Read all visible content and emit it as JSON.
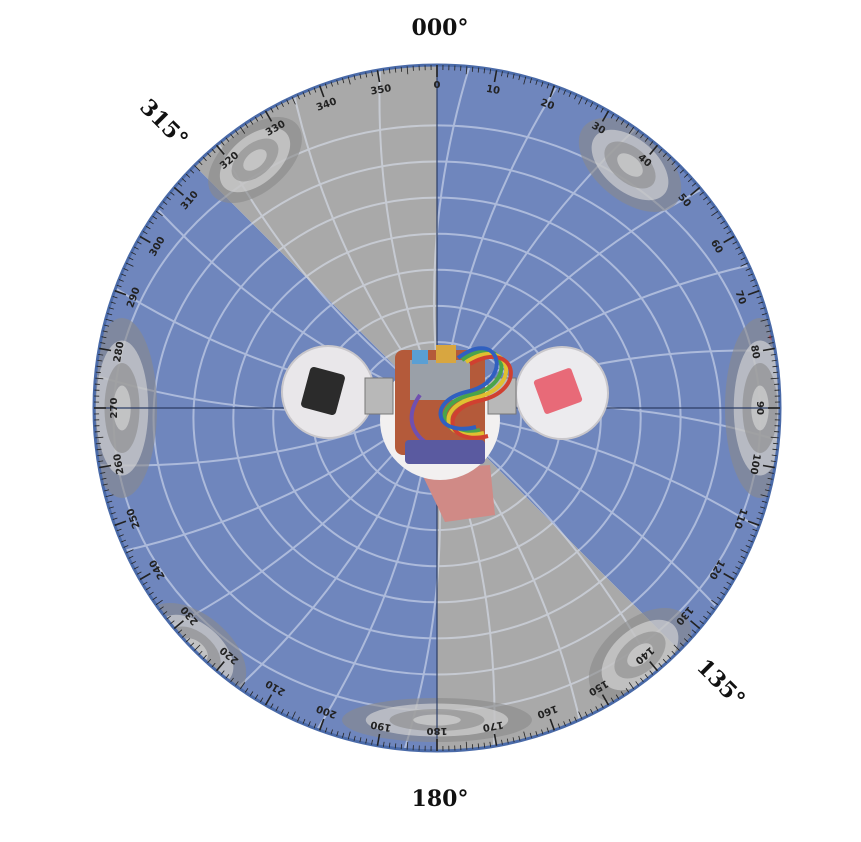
{
  "cardinal_labels": {
    "north": "000°",
    "northwest": "315°",
    "southeast": "135°",
    "south": "180°"
  },
  "dial": {
    "tick_labels": [
      "0",
      "10",
      "20",
      "30",
      "40",
      "50",
      "60",
      "70",
      "80",
      "90",
      "100",
      "110",
      "120",
      "130",
      "140",
      "150",
      "160",
      "170",
      "180",
      "190",
      "200",
      "210",
      "220",
      "230",
      "240",
      "250",
      "260",
      "270",
      "280",
      "290",
      "300",
      "310",
      "320",
      "330",
      "340",
      "350"
    ],
    "label_step_deg": 10,
    "minor_tick_step_deg": 1
  },
  "sectors": [
    {
      "name": "sector-0-135",
      "start_deg": 0,
      "end_deg": 135,
      "color": "#6f86bd"
    },
    {
      "name": "sector-135-180",
      "start_deg": 135,
      "end_deg": 180,
      "color": "#a9a9a9"
    },
    {
      "name": "sector-180-315",
      "start_deg": 180,
      "end_deg": 315,
      "color": "#6f86bd"
    },
    {
      "name": "sector-315-360",
      "start_deg": 315,
      "end_deg": 360,
      "color": "#a9a9a9"
    }
  ],
  "colors": {
    "ring": "#4a6aa8",
    "grid": "#dfe6f5",
    "target_rings": "#8a8a8a",
    "accent_red": "#c03838"
  },
  "center_object": "robot-head-icon"
}
